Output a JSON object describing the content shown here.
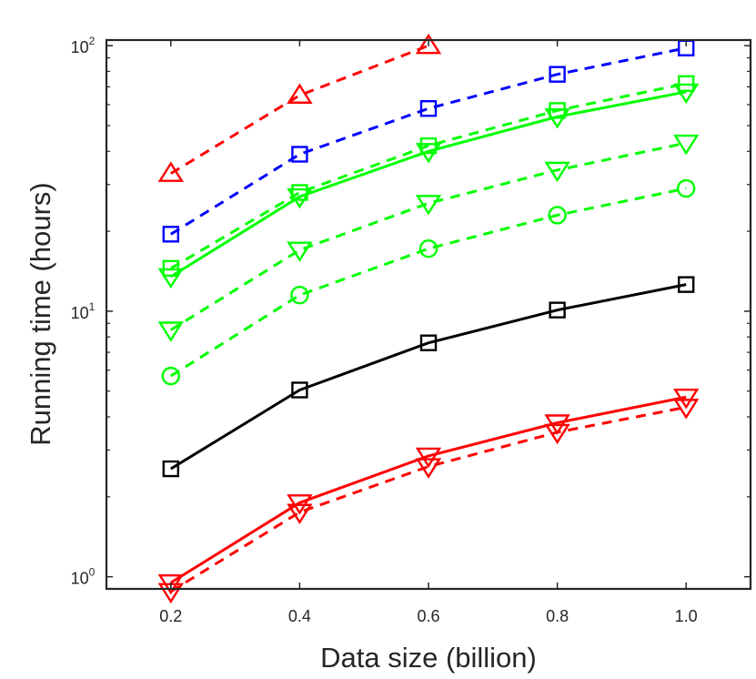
{
  "chart_data": {
    "type": "line",
    "title": "",
    "xlabel": "Data size (billion)",
    "ylabel": "Running time (hours)",
    "xlim": [
      0.1,
      1.1
    ],
    "ylim": [
      0.9,
      105
    ],
    "y_scale": "log",
    "grid": false,
    "x_ticks": [
      "0.2",
      "0.4",
      "0.6",
      "0.8",
      "1.0"
    ],
    "y_ticks": [
      {
        "base": "10",
        "exp": "0",
        "value": 1
      },
      {
        "base": "10",
        "exp": "1",
        "value": 10
      },
      {
        "base": "10",
        "exp": "2",
        "value": 100
      }
    ],
    "x": [
      0.2,
      0.4,
      0.6,
      0.8,
      1.0
    ],
    "series": [
      {
        "color": "#ff0000",
        "dash": "dashed",
        "marker": "triangle-up",
        "values": [
          33,
          65,
          100,
          null,
          null
        ]
      },
      {
        "color": "#0000ff",
        "dash": "dashed",
        "marker": "square",
        "values": [
          19.5,
          39,
          58,
          78,
          98
        ]
      },
      {
        "color": "#00ff00",
        "dash": "dashed",
        "marker": "square",
        "values": [
          14.5,
          28,
          42,
          57,
          72
        ]
      },
      {
        "color": "#00ff00",
        "dash": "solid",
        "marker": "triangle-down",
        "values": [
          13.5,
          27,
          40,
          54,
          67
        ]
      },
      {
        "color": "#00ff00",
        "dash": "dashed",
        "marker": "triangle-down",
        "values": [
          8.5,
          17,
          25.5,
          34,
          43
        ]
      },
      {
        "color": "#00ff00",
        "dash": "dashed",
        "marker": "circle",
        "values": [
          5.7,
          11.5,
          17.2,
          23,
          29
        ]
      },
      {
        "color": "#000000",
        "dash": "solid",
        "marker": "square",
        "values": [
          2.55,
          5.05,
          7.6,
          10.1,
          12.6
        ]
      },
      {
        "color": "#ff0000",
        "dash": "solid",
        "marker": "triangle-down",
        "values": [
          0.95,
          1.9,
          2.85,
          3.8,
          4.75
        ]
      },
      {
        "color": "#ff0000",
        "dash": "dashed",
        "marker": "triangle-down",
        "values": [
          0.88,
          1.75,
          2.6,
          3.5,
          4.35
        ]
      }
    ]
  }
}
